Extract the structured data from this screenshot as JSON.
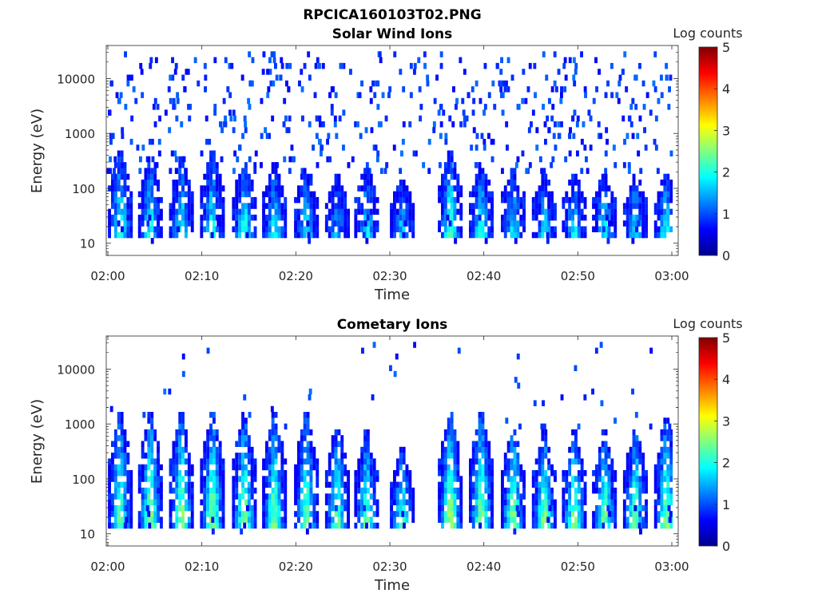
{
  "figure_title": "RPCICA160103T02.PNG",
  "colors": {
    "axis": "#262626",
    "background": "#ffffff"
  },
  "colormap": "jet",
  "chart_data": [
    {
      "type": "heatmap",
      "title": "Solar Wind Ions",
      "xlabel": "Time",
      "ylabel": "Energy (eV)",
      "xticks": [
        "02:00",
        "02:10",
        "02:20",
        "02:30",
        "02:40",
        "02:50",
        "03:00"
      ],
      "yticks": [
        "10",
        "100",
        "1000",
        "10000"
      ],
      "yscale": "log",
      "ylim": [
        6,
        40000
      ],
      "xlim": [
        "02:00",
        "03:00"
      ],
      "colorbar": {
        "label": "Log counts",
        "ticks": [
          "0",
          "1",
          "2",
          "3",
          "4",
          "5"
        ],
        "range": [
          0,
          5
        ]
      },
      "bursts_minutes": [
        1.5,
        4.7,
        8.0,
        11.3,
        14.7,
        17.9,
        21.3,
        24.6,
        27.7,
        31.5,
        36.6,
        39.9,
        43.3,
        46.6,
        49.8,
        53.0,
        56.3,
        59.6
      ],
      "bursts_peak_log_counts": [
        2.3,
        2.2,
        2.2,
        2.2,
        2.2,
        2.0,
        1.9,
        1.7,
        2.0,
        1.8,
        2.5,
        2.2,
        2.0,
        1.9,
        2.0,
        2.1,
        2.0,
        2.2
      ],
      "bursts_max_energy_eV": [
        700,
        500,
        500,
        700,
        400,
        350,
        300,
        200,
        300,
        200,
        700,
        400,
        350,
        250,
        250,
        250,
        250,
        250
      ],
      "background_sparse_counts": "scattered single counts ~1 log count across 100–30000 eV"
    },
    {
      "type": "heatmap",
      "title": "Cometary Ions",
      "xlabel": "Time",
      "ylabel": "Energy (eV)",
      "xticks": [
        "02:00",
        "02:10",
        "02:20",
        "02:30",
        "02:40",
        "02:50",
        "03:00"
      ],
      "yticks": [
        "10",
        "100",
        "1000",
        "10000"
      ],
      "yscale": "log",
      "ylim": [
        6,
        40000
      ],
      "xlim": [
        "02:00",
        "03:00"
      ],
      "colorbar": {
        "label": "Log counts",
        "ticks": [
          "0",
          "1",
          "2",
          "3",
          "4",
          "5"
        ],
        "range": [
          0,
          5
        ]
      },
      "bursts_minutes": [
        1.5,
        4.7,
        8.0,
        11.3,
        14.7,
        17.9,
        21.3,
        24.6,
        27.7,
        31.5,
        36.6,
        39.9,
        43.3,
        46.6,
        49.8,
        53.0,
        56.3,
        59.6
      ],
      "bursts_peak_log_counts": [
        2.6,
        2.9,
        2.9,
        2.9,
        2.8,
        2.8,
        2.7,
        2.6,
        2.6,
        2.5,
        3.0,
        2.9,
        2.9,
        2.8,
        2.8,
        2.8,
        2.8,
        2.8
      ],
      "bursts_max_energy_eV": [
        2500,
        2500,
        2500,
        2500,
        2500,
        2500,
        2500,
        1500,
        1000,
        500,
        2500,
        2500,
        1200,
        1000,
        1000,
        1000,
        1200,
        2000
      ],
      "background_sparse_counts": "few isolated counts at 1000–20000 eV"
    }
  ]
}
